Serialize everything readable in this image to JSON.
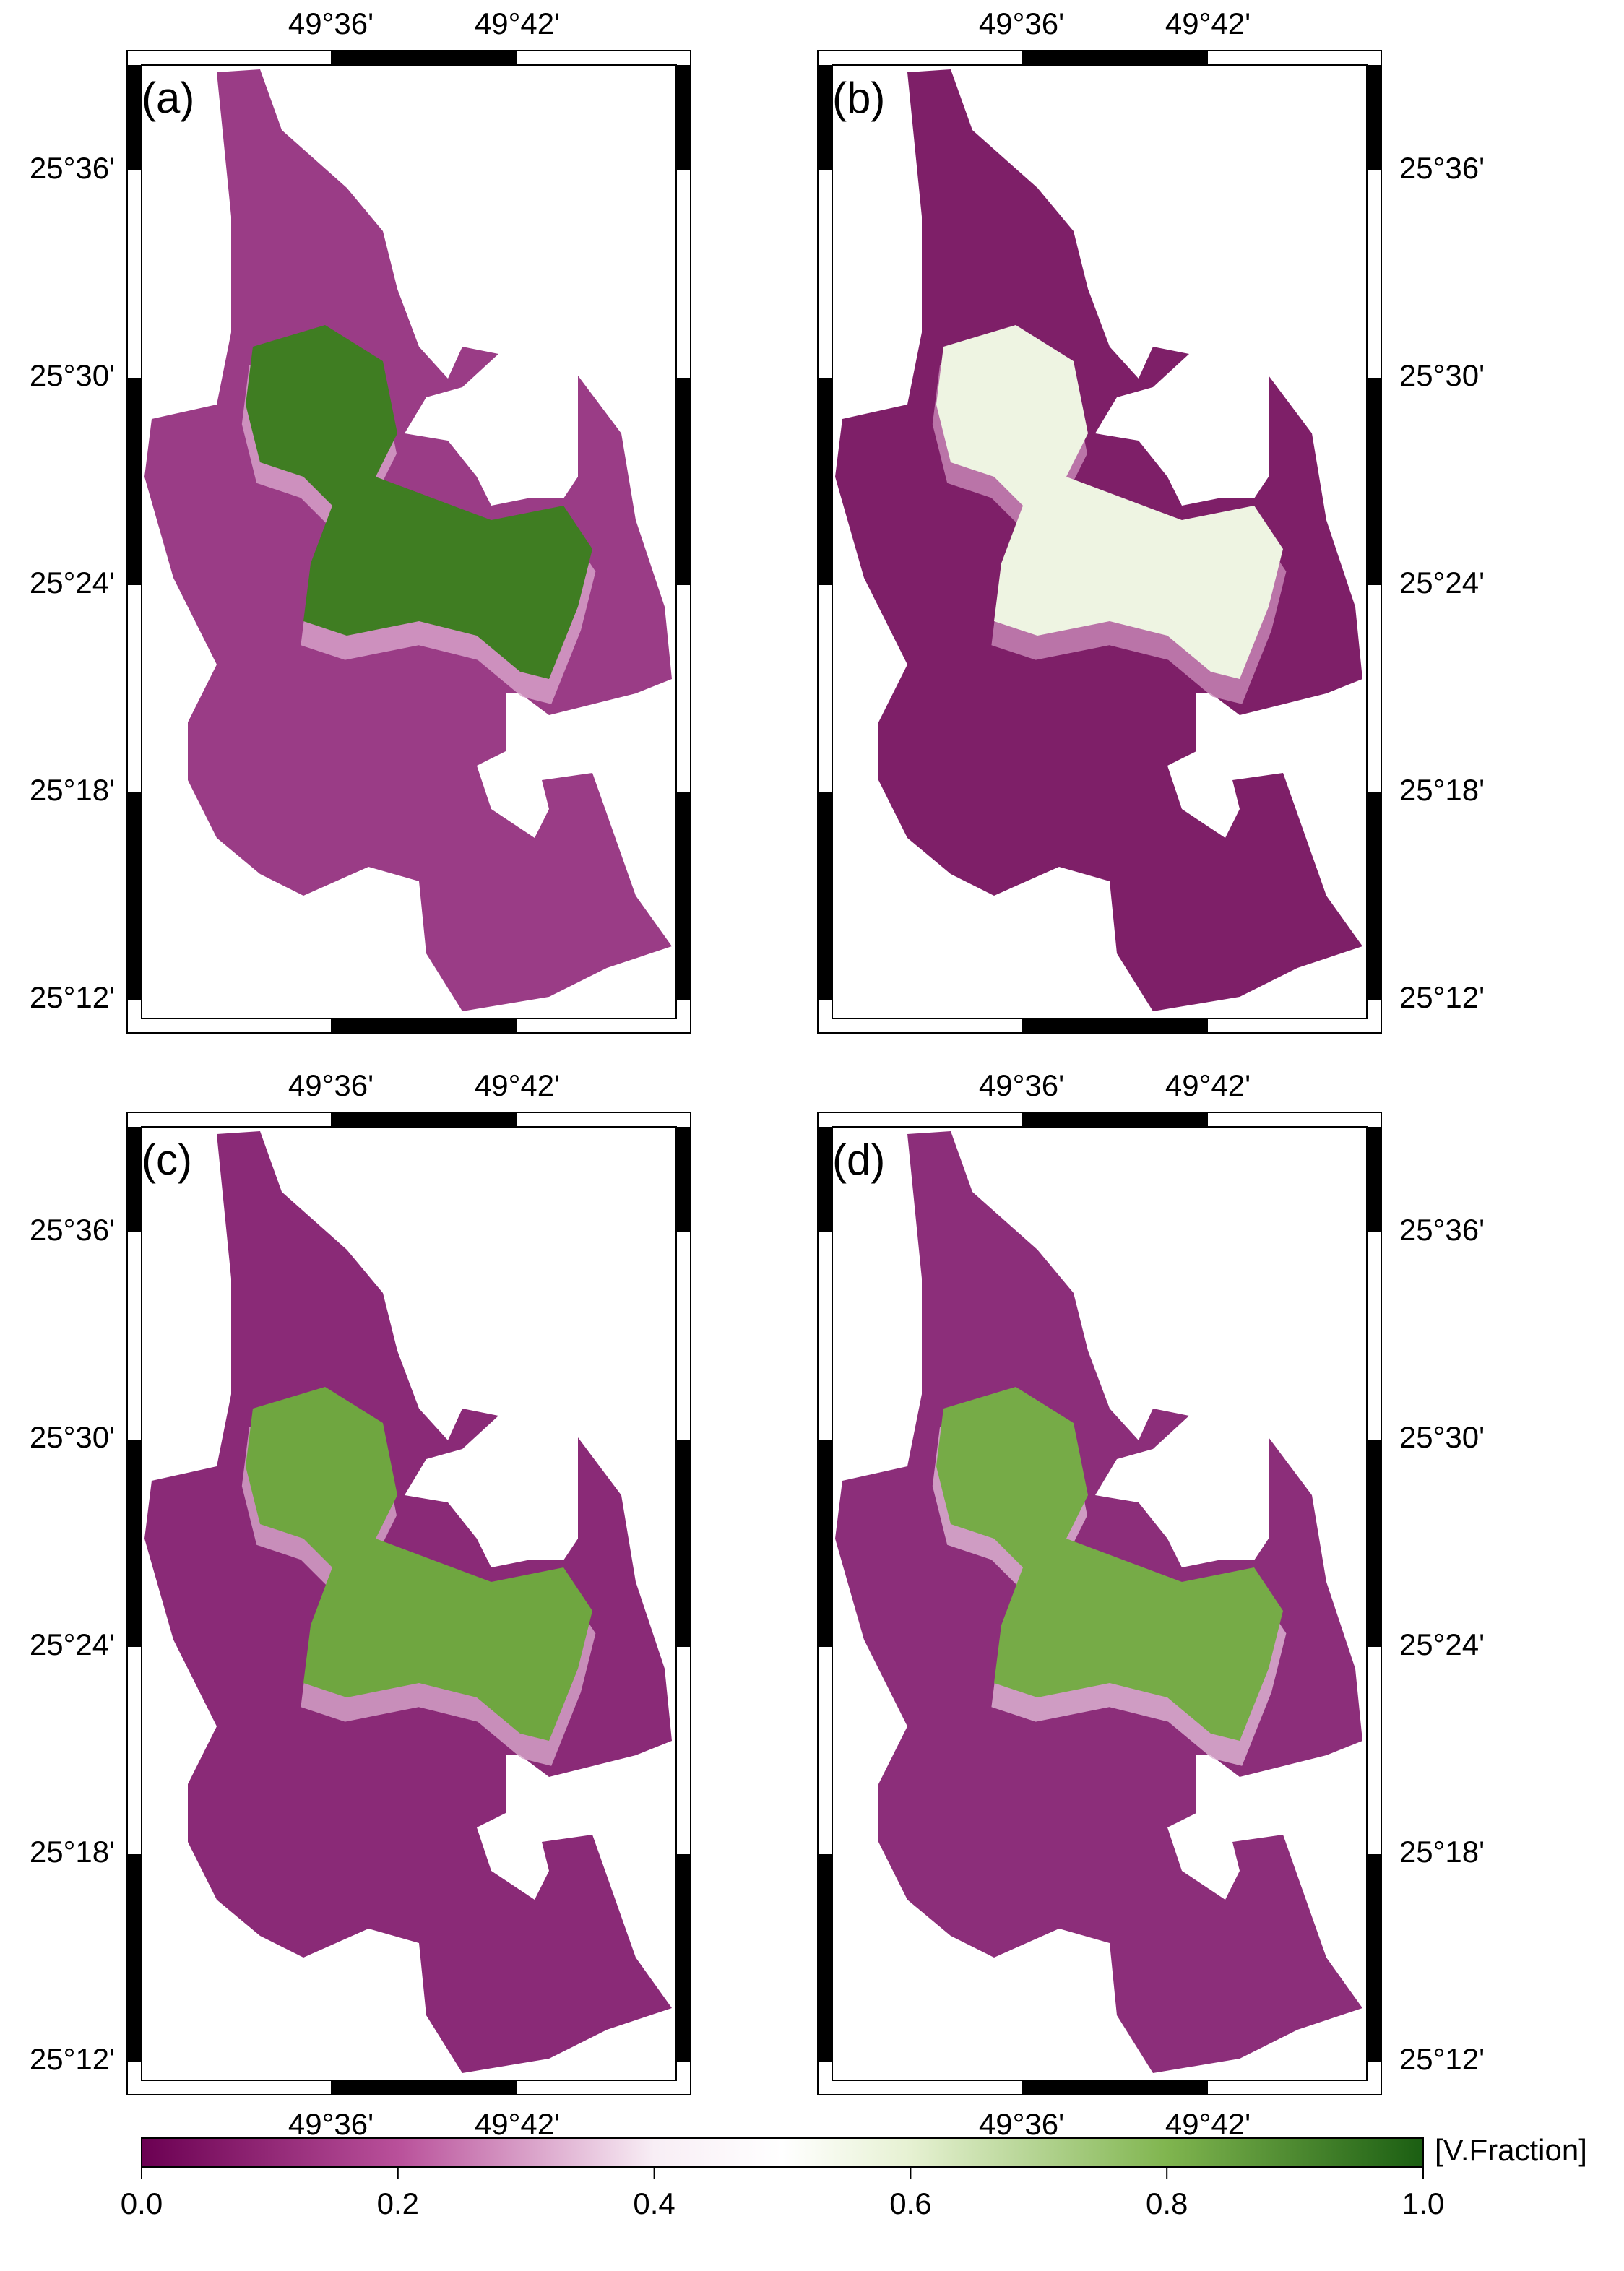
{
  "panels": [
    {
      "label": "(a)"
    },
    {
      "label": "(b)"
    },
    {
      "label": "(c)"
    },
    {
      "label": "(d)"
    }
  ],
  "longitude_ticks": [
    "49°36'",
    "49°42'"
  ],
  "latitude_ticks": [
    "25°36'",
    "25°30'",
    "25°24'",
    "25°18'",
    "25°12'"
  ],
  "colorbar": {
    "ticks": [
      {
        "value": 0,
        "label": "0.0"
      },
      {
        "value": 0.2,
        "label": "0.2"
      },
      {
        "value": 0.4,
        "label": "0.4"
      },
      {
        "value": 0.6,
        "label": "0.6"
      },
      {
        "value": 0.8,
        "label": "0.8"
      },
      {
        "value": 1,
        "label": "1.0"
      }
    ],
    "unit": "[V.Fraction]"
  }
}
